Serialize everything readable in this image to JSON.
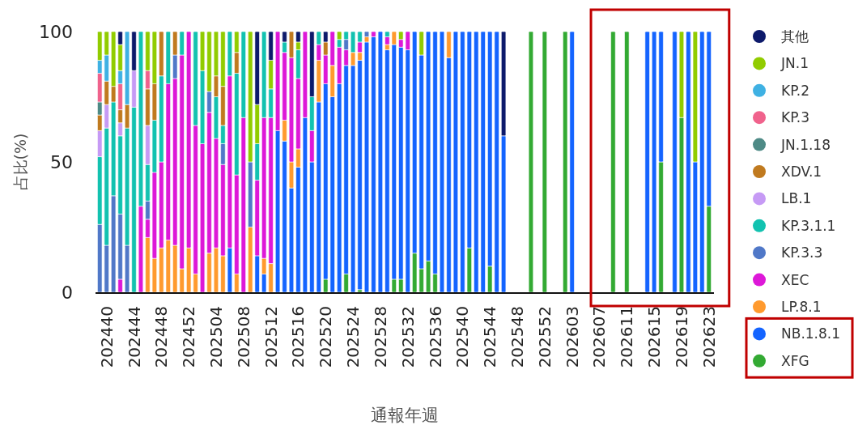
{
  "chart_data": {
    "type": "bar",
    "stacked": true,
    "xlabel": "通報年週",
    "ylabel": "占比(%)",
    "ylim": [
      0,
      100
    ],
    "yticks": [
      0,
      50,
      100
    ],
    "legend": "right",
    "grid": false,
    "categories": [
      null,
      "202440",
      null,
      null,
      null,
      "202444",
      null,
      null,
      null,
      "202448",
      null,
      null,
      null,
      "202452",
      null,
      null,
      null,
      "202504",
      null,
      null,
      null,
      "202508",
      null,
      null,
      null,
      "202512",
      null,
      null,
      null,
      "202516",
      null,
      null,
      null,
      "202520",
      null,
      null,
      null,
      "202524",
      null,
      null,
      null,
      "202528",
      null,
      null,
      null,
      "202532",
      null,
      null,
      null,
      "202536",
      null,
      null,
      null,
      "202540",
      null,
      null,
      null,
      "202544",
      null,
      null,
      null,
      "202548",
      null,
      null,
      null,
      "202552",
      null,
      null,
      null,
      "202603",
      null,
      null,
      null,
      "202607",
      null,
      null,
      null,
      "202611",
      null,
      null,
      null,
      "202615",
      null,
      null,
      null,
      "202619",
      null,
      null,
      null,
      "202623"
    ],
    "series": [
      {
        "name": "XFG",
        "color": "#33aa33",
        "values": [
          null,
          null,
          null,
          null,
          null,
          null,
          null,
          null,
          null,
          null,
          null,
          null,
          null,
          null,
          null,
          null,
          null,
          null,
          null,
          null,
          null,
          null,
          null,
          null,
          null,
          null,
          null,
          null,
          null,
          null,
          null,
          null,
          null,
          5,
          null,
          null,
          7,
          null,
          1,
          null,
          null,
          null,
          null,
          5,
          5,
          null,
          15,
          9,
          12,
          7,
          null,
          null,
          null,
          null,
          17,
          null,
          null,
          10,
          null,
          null,
          null,
          null,
          null,
          100,
          null,
          100,
          null,
          null,
          100,
          null,
          null,
          null,
          null,
          null,
          null,
          100,
          null,
          100,
          null,
          null,
          null,
          null,
          50,
          null,
          null,
          67,
          null,
          null,
          null,
          33
        ]
      },
      {
        "name": "NB.1.8.1",
        "color": "#1464ff",
        "values": [
          null,
          null,
          null,
          null,
          null,
          null,
          null,
          null,
          null,
          null,
          null,
          null,
          null,
          null,
          null,
          null,
          null,
          null,
          null,
          17,
          null,
          null,
          null,
          14,
          7,
          null,
          62,
          58,
          40,
          48,
          67,
          50,
          73,
          75,
          75,
          80,
          80,
          87,
          88,
          96,
          98,
          100,
          93,
          90,
          89,
          93,
          85,
          82,
          88,
          93,
          100,
          90,
          100,
          100,
          83,
          100,
          100,
          90,
          100,
          60,
          null,
          null,
          null,
          null,
          null,
          null,
          null,
          null,
          null,
          100,
          null,
          null,
          null,
          null,
          null,
          null,
          null,
          null,
          null,
          null,
          100,
          100,
          50,
          null,
          100,
          null,
          100,
          50,
          100,
          67
        ]
      },
      {
        "name": "LP.8.1",
        "color": "#ff9a2e",
        "values": [
          null,
          null,
          null,
          null,
          null,
          null,
          null,
          21,
          13,
          17,
          20,
          18,
          9,
          17,
          7,
          null,
          15,
          17,
          14,
          null,
          7,
          null,
          25,
          null,
          6,
          11,
          null,
          8,
          10,
          7,
          null,
          null,
          16,
          null,
          12,
          null,
          null,
          5,
          3,
          2,
          null,
          null,
          2,
          5,
          null,
          null,
          null,
          null,
          null,
          null,
          null,
          10,
          null,
          null,
          null,
          null,
          null,
          null,
          null,
          null,
          null,
          null,
          null,
          null,
          null,
          null,
          null,
          null,
          null,
          null,
          null,
          null,
          null,
          null,
          null,
          null,
          null,
          null,
          null,
          null,
          null,
          null,
          null,
          null,
          null,
          null,
          null,
          null,
          null,
          null
        ]
      },
      {
        "name": "XEC",
        "color": "#dd18d8",
        "values": [
          null,
          null,
          null,
          5,
          null,
          null,
          33,
          7,
          33,
          33,
          60,
          64,
          82,
          83,
          57,
          57,
          54,
          42,
          35,
          66,
          38,
          67,
          null,
          29,
          54,
          56,
          38,
          26,
          40,
          27,
          33,
          12,
          6,
          11,
          13,
          14,
          6,
          null,
          4,
          null,
          2,
          null,
          3,
          null,
          3,
          7,
          null,
          null,
          null,
          null,
          null,
          null,
          null,
          null,
          null,
          null,
          null,
          null,
          null,
          null,
          null,
          null,
          null,
          null,
          null,
          null,
          null,
          null,
          null,
          null,
          null,
          null,
          null,
          null,
          null,
          null,
          null,
          null,
          null,
          null,
          null,
          null,
          null,
          null,
          null,
          null,
          null,
          null,
          null,
          null
        ]
      },
      {
        "name": "KP.3.3",
        "color": "#5078c8",
        "values": [
          26,
          18,
          37,
          25,
          18,
          null,
          null,
          7,
          null,
          null,
          null,
          9,
          null,
          null,
          null,
          null,
          8,
          null,
          8,
          null,
          null,
          null,
          25,
          null,
          null,
          null,
          null,
          null,
          null,
          null,
          null,
          null,
          null,
          null,
          null,
          null,
          4,
          null,
          null,
          2,
          null,
          null,
          null,
          null,
          null,
          null,
          null,
          null,
          null,
          null,
          null,
          null,
          null,
          null,
          null,
          null,
          null,
          null,
          null,
          null,
          null,
          null,
          null,
          null,
          null,
          null,
          null,
          null,
          null,
          null,
          null,
          null,
          null,
          null,
          null,
          null,
          null,
          null,
          null,
          null,
          null,
          null,
          null,
          null,
          null,
          null,
          null,
          null,
          null,
          null
        ]
      },
      {
        "name": "KP.3.1.1",
        "color": "#12c2b0",
        "values": [
          26,
          45,
          36,
          30,
          45,
          71,
          67,
          14,
          20,
          33,
          20,
          null,
          9,
          null,
          36,
          28,
          null,
          16,
          7,
          17,
          39,
          33,
          null,
          14,
          33,
          11,
          null,
          4,
          null,
          11,
          null,
          13,
          5,
          null,
          null,
          3,
          3,
          8,
          4,
          null,
          null,
          null,
          2,
          null,
          null,
          null,
          null,
          null,
          null,
          null,
          null,
          null,
          null,
          null,
          null,
          null,
          null,
          null,
          null,
          null,
          null,
          null,
          null,
          null,
          null,
          null,
          null,
          null,
          null,
          null,
          null,
          null,
          null,
          null,
          null,
          null,
          null,
          null,
          null,
          null,
          null,
          null,
          null,
          null,
          null,
          null,
          null,
          null,
          null,
          null
        ]
      },
      {
        "name": "LB.1",
        "color": "#c69af5",
        "values": [
          10,
          9,
          null,
          5,
          null,
          14,
          null,
          15,
          null,
          null,
          null,
          null,
          null,
          null,
          null,
          null,
          null,
          null,
          null,
          null,
          null,
          null,
          null,
          null,
          null,
          null,
          null,
          null,
          null,
          null,
          null,
          null,
          null,
          null,
          null,
          null,
          null,
          null,
          null,
          null,
          null,
          null,
          null,
          null,
          null,
          null,
          null,
          null,
          null,
          null,
          null,
          null,
          null,
          null,
          null,
          null,
          null,
          null,
          null,
          null,
          null,
          null,
          null,
          null,
          null,
          null,
          null,
          null,
          null,
          null,
          null,
          null,
          null,
          null,
          null,
          null,
          null,
          null,
          null,
          null,
          null,
          null,
          null,
          null,
          null,
          null,
          null,
          null,
          null,
          null
        ]
      },
      {
        "name": "XDV.1",
        "color": "#c07a1f",
        "values": [
          6,
          9,
          6,
          5,
          9,
          null,
          null,
          14,
          14,
          17,
          null,
          9,
          null,
          null,
          null,
          null,
          null,
          8,
          15,
          null,
          8,
          null,
          null,
          null,
          null,
          null,
          null,
          null,
          10,
          null,
          null,
          null,
          null,
          5,
          null,
          null,
          null,
          null,
          null,
          null,
          null,
          null,
          null,
          null,
          null,
          null,
          null,
          null,
          null,
          null,
          null,
          null,
          null,
          null,
          null,
          null,
          null,
          null,
          null,
          null,
          null,
          null,
          null,
          null,
          null,
          null,
          null,
          null,
          null,
          null,
          null,
          null,
          null,
          null,
          null,
          null,
          null,
          null,
          null,
          null,
          null,
          null,
          null,
          null,
          null,
          null,
          null,
          null,
          null,
          null
        ]
      },
      {
        "name": "JN.1.18",
        "color": "#4e8a86",
        "values": [
          5,
          null,
          null,
          null,
          null,
          null,
          null,
          null,
          null,
          null,
          null,
          null,
          null,
          null,
          null,
          null,
          null,
          null,
          null,
          null,
          null,
          null,
          null,
          null,
          null,
          null,
          null,
          null,
          null,
          null,
          null,
          null,
          null,
          null,
          null,
          null,
          null,
          null,
          null,
          null,
          null,
          null,
          null,
          null,
          null,
          null,
          null,
          null,
          null,
          null,
          null,
          null,
          null,
          null,
          null,
          null,
          null,
          null,
          null,
          null,
          null,
          null,
          null,
          null,
          null,
          null,
          null,
          null,
          null,
          null,
          null,
          null,
          null,
          null,
          null,
          null,
          null,
          null,
          null,
          null,
          null,
          null,
          null,
          null,
          null,
          null,
          null,
          null,
          null,
          null
        ]
      },
      {
        "name": "KP.3",
        "color": "#f0628c",
        "values": [
          11,
          null,
          null,
          10,
          null,
          null,
          null,
          7,
          null,
          null,
          null,
          null,
          null,
          null,
          null,
          null,
          null,
          null,
          null,
          null,
          null,
          null,
          null,
          null,
          null,
          null,
          null,
          null,
          null,
          null,
          null,
          null,
          null,
          null,
          null,
          null,
          null,
          null,
          null,
          null,
          null,
          null,
          null,
          null,
          null,
          null,
          null,
          null,
          null,
          null,
          null,
          null,
          null,
          null,
          null,
          null,
          null,
          null,
          null,
          null,
          null,
          null,
          null,
          null,
          null,
          null,
          null,
          null,
          null,
          null,
          null,
          null,
          null,
          null,
          null,
          null,
          null,
          null,
          null,
          null,
          null,
          null,
          null,
          null,
          null,
          null,
          null,
          null,
          null,
          null
        ]
      },
      {
        "name": "KP.2",
        "color": "#3fb1e3",
        "values": [
          5,
          10,
          null,
          5,
          28,
          null,
          null,
          null,
          null,
          null,
          null,
          null,
          null,
          null,
          null,
          null,
          null,
          null,
          null,
          null,
          null,
          null,
          null,
          null,
          null,
          null,
          null,
          null,
          null,
          null,
          null,
          null,
          null,
          null,
          null,
          null,
          null,
          null,
          null,
          null,
          null,
          null,
          null,
          null,
          null,
          null,
          null,
          null,
          null,
          null,
          null,
          null,
          null,
          null,
          null,
          null,
          null,
          null,
          null,
          null,
          null,
          null,
          null,
          null,
          null,
          null,
          null,
          null,
          null,
          null,
          null,
          null,
          null,
          null,
          null,
          null,
          null,
          null,
          null,
          null,
          null,
          null,
          null,
          null,
          null,
          null,
          null,
          null,
          null,
          null
        ]
      },
      {
        "name": "JN.1",
        "color": "#91cc00",
        "values": [
          11,
          9,
          21,
          10,
          null,
          null,
          null,
          15,
          20,
          null,
          null,
          null,
          null,
          null,
          null,
          15,
          23,
          17,
          21,
          null,
          8,
          null,
          50,
          15,
          null,
          11,
          null,
          null,
          null,
          3,
          null,
          null,
          null,
          null,
          null,
          3,
          null,
          null,
          null,
          null,
          null,
          null,
          null,
          null,
          3,
          null,
          null,
          9,
          null,
          null,
          null,
          null,
          null,
          null,
          null,
          null,
          null,
          null,
          null,
          null,
          null,
          null,
          null,
          null,
          null,
          null,
          null,
          null,
          null,
          null,
          null,
          null,
          null,
          null,
          null,
          null,
          null,
          null,
          null,
          null,
          null,
          null,
          null,
          null,
          null,
          33,
          null,
          50,
          null,
          null
        ]
      },
      {
        "name": "其他",
        "color": "#0d1a6b",
        "values": [
          null,
          null,
          null,
          5,
          null,
          15,
          null,
          null,
          null,
          null,
          null,
          null,
          null,
          null,
          null,
          null,
          null,
          null,
          null,
          null,
          null,
          null,
          null,
          28,
          null,
          11,
          null,
          4,
          null,
          4,
          null,
          25,
          null,
          4,
          null,
          null,
          null,
          null,
          null,
          null,
          null,
          null,
          null,
          null,
          null,
          null,
          null,
          null,
          null,
          null,
          null,
          null,
          null,
          null,
          null,
          null,
          null,
          null,
          null,
          40,
          null,
          null,
          null,
          null,
          null,
          null,
          null,
          null,
          null,
          null,
          null,
          null,
          null,
          null,
          null,
          null,
          null,
          null,
          null,
          null,
          null,
          null,
          null,
          null,
          null,
          null,
          null,
          null,
          null,
          null
        ]
      }
    ]
  }
}
